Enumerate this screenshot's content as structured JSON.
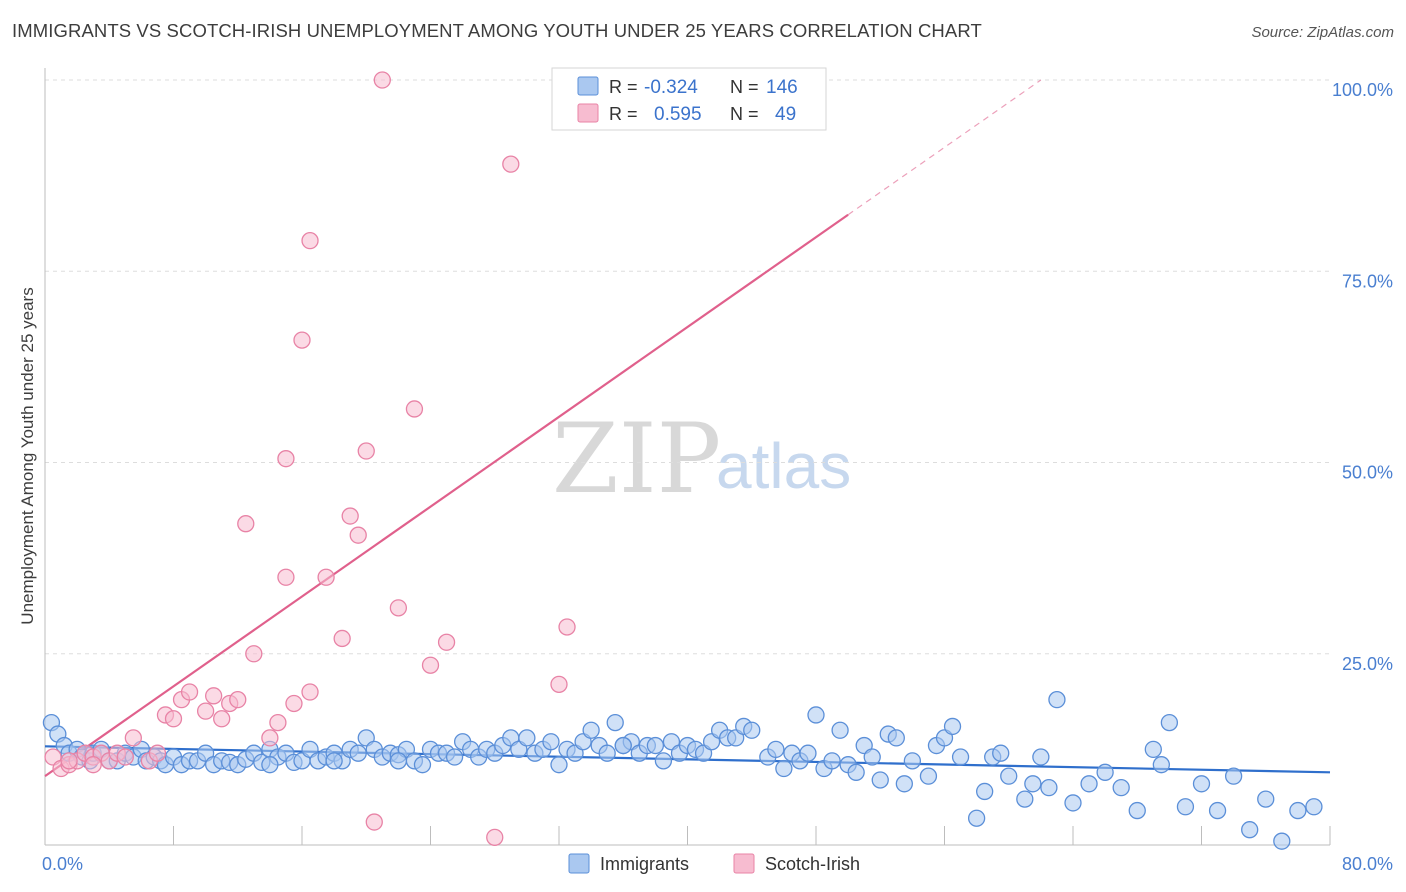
{
  "header": {
    "title": "IMMIGRANTS VS SCOTCH-IRISH UNEMPLOYMENT AMONG YOUTH UNDER 25 YEARS CORRELATION CHART",
    "source": "Source: ZipAtlas.com"
  },
  "watermark": {
    "zip": "ZIP",
    "atlas": "atlas"
  },
  "stats": {
    "immigrants": {
      "r_label": "R =",
      "r": "-0.324",
      "n_label": "N =",
      "n": "146"
    },
    "scotch_irish": {
      "r_label": "R =",
      "r": "0.595",
      "n_label": "N =",
      "n": "49"
    }
  },
  "colors": {
    "immigrants_fill": "#aac8f0",
    "immigrants_stroke": "#5b8fd8",
    "immigrants_line": "#2f6fcc",
    "scotch_fill": "#f7bcd0",
    "scotch_stroke": "#e883a6",
    "scotch_line": "#e0608c",
    "axis_tick": "#4a7fd0",
    "grid": "#dddddd"
  },
  "chart_data": {
    "type": "scatter",
    "title": "IMMIGRANTS VS SCOTCH-IRISH UNEMPLOYMENT AMONG YOUTH UNDER 25 YEARS CORRELATION CHART",
    "xlabel": "",
    "ylabel": "Unemployment Among Youth under 25 years",
    "xlim": [
      0,
      80
    ],
    "ylim": [
      0,
      100
    ],
    "x_tick_labels": [
      "0.0%",
      "80.0%"
    ],
    "y_ticks": [
      25,
      50,
      75,
      100
    ],
    "y_tick_labels": [
      "25.0%",
      "50.0%",
      "75.0%",
      "100.0%"
    ],
    "legend": [
      "Immigrants",
      "Scotch-Irish"
    ],
    "series": [
      {
        "name": "Immigrants",
        "trend": {
          "x0": 0,
          "y0": 12.9,
          "x1": 80,
          "y1": 9.5,
          "dash_from": null
        },
        "points": [
          [
            0.4,
            16
          ],
          [
            0.8,
            14.5
          ],
          [
            1.2,
            13
          ],
          [
            1.5,
            12
          ],
          [
            2,
            12.5
          ],
          [
            2.3,
            11.5
          ],
          [
            2.8,
            11
          ],
          [
            3,
            12
          ],
          [
            3.5,
            12.5
          ],
          [
            4,
            11
          ],
          [
            4.5,
            11
          ],
          [
            5,
            12
          ],
          [
            5.5,
            11.5
          ],
          [
            6,
            12.5
          ],
          [
            6.3,
            11
          ],
          [
            6.8,
            11.5
          ],
          [
            7.2,
            11
          ],
          [
            7.5,
            10.5
          ],
          [
            8,
            11.5
          ],
          [
            8.5,
            10.5
          ],
          [
            9,
            11
          ],
          [
            9.5,
            11
          ],
          [
            10,
            12
          ],
          [
            10.5,
            10.5
          ],
          [
            11,
            11
          ],
          [
            11.5,
            10.8
          ],
          [
            12,
            10.5
          ],
          [
            12.5,
            11.2
          ],
          [
            13,
            12
          ],
          [
            13.5,
            10.8
          ],
          [
            14,
            12.5
          ],
          [
            14.5,
            11.5
          ],
          [
            15,
            12
          ],
          [
            15.5,
            10.8
          ],
          [
            16,
            11
          ],
          [
            16.5,
            12.5
          ],
          [
            17,
            11
          ],
          [
            17.5,
            11.5
          ],
          [
            18,
            12
          ],
          [
            18.5,
            11
          ],
          [
            19,
            12.5
          ],
          [
            19.5,
            12
          ],
          [
            20,
            14
          ],
          [
            20.5,
            12.5
          ],
          [
            21,
            11.5
          ],
          [
            21.5,
            12
          ],
          [
            22,
            11.8
          ],
          [
            22.5,
            12.5
          ],
          [
            23,
            11
          ],
          [
            23.5,
            10.5
          ],
          [
            24,
            12.5
          ],
          [
            24.5,
            12
          ],
          [
            25,
            12
          ],
          [
            25.5,
            11.5
          ],
          [
            26,
            13.5
          ],
          [
            26.5,
            12.5
          ],
          [
            27,
            11.5
          ],
          [
            27.5,
            12.5
          ],
          [
            28,
            12
          ],
          [
            28.5,
            13
          ],
          [
            29,
            14
          ],
          [
            29.5,
            12.5
          ],
          [
            30,
            14
          ],
          [
            30.5,
            12
          ],
          [
            31,
            12.5
          ],
          [
            31.5,
            13.5
          ],
          [
            32,
            10.5
          ],
          [
            32.5,
            12.5
          ],
          [
            33,
            12
          ],
          [
            33.5,
            13.5
          ],
          [
            34,
            15
          ],
          [
            34.5,
            13
          ],
          [
            35,
            12
          ],
          [
            35.5,
            16
          ],
          [
            36,
            13
          ],
          [
            36.5,
            13.5
          ],
          [
            37,
            12
          ],
          [
            37.5,
            13
          ],
          [
            38,
            13
          ],
          [
            38.5,
            11
          ],
          [
            39,
            13.5
          ],
          [
            39.5,
            12
          ],
          [
            40,
            13
          ],
          [
            40.5,
            12.5
          ],
          [
            41,
            12
          ],
          [
            41.5,
            13.5
          ],
          [
            42,
            15
          ],
          [
            42.5,
            14
          ],
          [
            43,
            14
          ],
          [
            43.5,
            15.5
          ],
          [
            44,
            15
          ],
          [
            45,
            11.5
          ],
          [
            45.5,
            12.5
          ],
          [
            46,
            10
          ],
          [
            46.5,
            12
          ],
          [
            47,
            11
          ],
          [
            47.5,
            12
          ],
          [
            48,
            17
          ],
          [
            48.5,
            10
          ],
          [
            49,
            11
          ],
          [
            49.5,
            15
          ],
          [
            50,
            10.5
          ],
          [
            50.5,
            9.5
          ],
          [
            51,
            13
          ],
          [
            51.5,
            11.5
          ],
          [
            52,
            8.5
          ],
          [
            52.5,
            14.5
          ],
          [
            53,
            14
          ],
          [
            53.5,
            8
          ],
          [
            54,
            11
          ],
          [
            55,
            9
          ],
          [
            55.5,
            13
          ],
          [
            56,
            14
          ],
          [
            56.5,
            15.5
          ],
          [
            57,
            11.5
          ],
          [
            58,
            3.5
          ],
          [
            58.5,
            7
          ],
          [
            59,
            11.5
          ],
          [
            59.5,
            12
          ],
          [
            60,
            9
          ],
          [
            61,
            6
          ],
          [
            61.5,
            8
          ],
          [
            62,
            11.5
          ],
          [
            62.5,
            7.5
          ],
          [
            63,
            19
          ],
          [
            64,
            5.5
          ],
          [
            65,
            8
          ],
          [
            66,
            9.5
          ],
          [
            67,
            7.5
          ],
          [
            68,
            4.5
          ],
          [
            69,
            12.5
          ],
          [
            69.5,
            10.5
          ],
          [
            70,
            16
          ],
          [
            71,
            5
          ],
          [
            72,
            8
          ],
          [
            73,
            4.5
          ],
          [
            74,
            9
          ],
          [
            75,
            2
          ],
          [
            76,
            6
          ],
          [
            77,
            0.5
          ],
          [
            78,
            4.5
          ],
          [
            79,
            5
          ],
          [
            36,
            13
          ],
          [
            22,
            11
          ],
          [
            18,
            11
          ],
          [
            14,
            10.5
          ]
        ]
      },
      {
        "name": "Scotch-Irish",
        "trend": {
          "x0": 0,
          "y0": 9,
          "x1": 62,
          "y1": 100,
          "dash_from": 50
        },
        "points": [
          [
            0.5,
            11.5
          ],
          [
            1,
            10
          ],
          [
            1.5,
            10.5
          ],
          [
            2,
            11
          ],
          [
            2.5,
            12
          ],
          [
            3,
            11.5
          ],
          [
            3.5,
            12
          ],
          [
            4,
            11
          ],
          [
            4.5,
            12
          ],
          [
            5.5,
            14
          ],
          [
            6.5,
            11
          ],
          [
            7.5,
            17
          ],
          [
            8,
            16.5
          ],
          [
            8.5,
            19
          ],
          [
            9,
            20
          ],
          [
            10,
            17.5
          ],
          [
            10.5,
            19.5
          ],
          [
            11,
            16.5
          ],
          [
            11.5,
            18.5
          ],
          [
            12,
            19
          ],
          [
            13,
            25
          ],
          [
            14,
            14
          ],
          [
            14.5,
            16
          ],
          [
            15,
            35
          ],
          [
            15.5,
            18.5
          ],
          [
            16.5,
            20
          ],
          [
            17.5,
            35
          ],
          [
            18.5,
            27
          ],
          [
            19,
            43
          ],
          [
            19.5,
            40.5
          ],
          [
            20,
            51.5
          ],
          [
            20.5,
            3
          ],
          [
            21,
            100
          ],
          [
            22,
            31
          ],
          [
            23,
            57
          ],
          [
            24,
            23.5
          ],
          [
            25,
            26.5
          ],
          [
            28,
            1
          ],
          [
            29,
            89
          ],
          [
            32,
            21
          ],
          [
            32.5,
            28.5
          ],
          [
            15,
            50.5
          ],
          [
            16,
            66
          ],
          [
            16.5,
            79
          ],
          [
            12.5,
            42
          ],
          [
            7,
            12
          ],
          [
            5,
            11.5
          ],
          [
            3,
            10.5
          ],
          [
            1.5,
            11
          ]
        ]
      }
    ]
  },
  "legend": {
    "immigrants": "Immigrants",
    "scotch_irish": "Scotch-Irish"
  }
}
